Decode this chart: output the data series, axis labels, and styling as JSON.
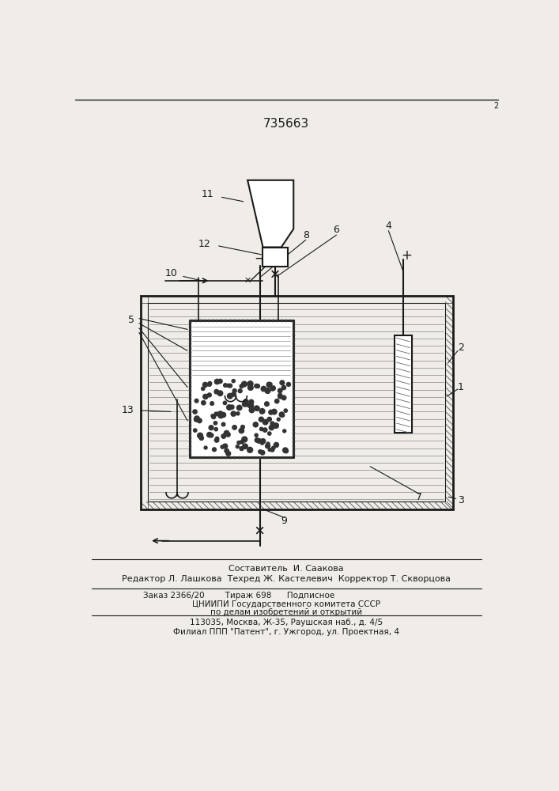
{
  "title": "735663",
  "bg_color": "#f0ede8",
  "line_color": "#1a1a1a",
  "footer_lines": [
    "Составитель  И. Саакова",
    "Редактор Л. Лашкова  Техред Ж. Кастелевич  Корректор Т. Скворцова",
    "Заказ 2366/20        Тираж 698      Подписное",
    "ЦНИИПИ Государственного комитета СССР",
    "по делам изобретений и открытий",
    "113035, Москва, Ж-35, Раушская наб., д. 4/5",
    "Филиал ППП \"Патент\", г. Ужгород, ул. Проектная, 4"
  ]
}
